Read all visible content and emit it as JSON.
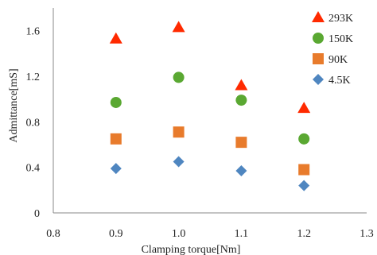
{
  "chart_data": {
    "type": "scatter",
    "xlabel": "Clamping  torque[Nm]",
    "ylabel": "Admittance[mS]",
    "xlim": [
      0.8,
      1.3
    ],
    "ylim": [
      0,
      1.8
    ],
    "x_ticks": [
      "0.8",
      "0.9",
      "1.0",
      "1.1",
      "1.2",
      "1.3"
    ],
    "y_ticks": [
      "0",
      "0.4",
      "0.8",
      "1.2",
      "1.6"
    ],
    "x_tick_values": [
      0.8,
      0.9,
      1.0,
      1.1,
      1.2,
      1.3
    ],
    "y_tick_values": [
      0,
      0.4,
      0.8,
      1.2,
      1.6
    ],
    "grid": false,
    "legend_position": "top-right",
    "series": [
      {
        "name": "293K",
        "marker": "triangle",
        "color": "#ff2a00",
        "points": [
          [
            0.9,
            1.53
          ],
          [
            1.0,
            1.63
          ],
          [
            1.1,
            1.12
          ],
          [
            1.2,
            0.92
          ]
        ]
      },
      {
        "name": "150K",
        "marker": "circle",
        "color": "#5aa832",
        "points": [
          [
            0.9,
            0.97
          ],
          [
            1.0,
            1.19
          ],
          [
            1.1,
            0.99
          ],
          [
            1.2,
            0.65
          ]
        ]
      },
      {
        "name": "90K",
        "marker": "square",
        "color": "#e87b2c",
        "points": [
          [
            0.9,
            0.65
          ],
          [
            1.0,
            0.71
          ],
          [
            1.1,
            0.62
          ],
          [
            1.2,
            0.38
          ]
        ]
      },
      {
        "name": "4.5K",
        "marker": "diamond",
        "color": "#4f86c0",
        "points": [
          [
            0.9,
            0.39
          ],
          [
            1.0,
            0.45
          ],
          [
            1.1,
            0.37
          ],
          [
            1.2,
            0.24
          ]
        ]
      }
    ]
  }
}
